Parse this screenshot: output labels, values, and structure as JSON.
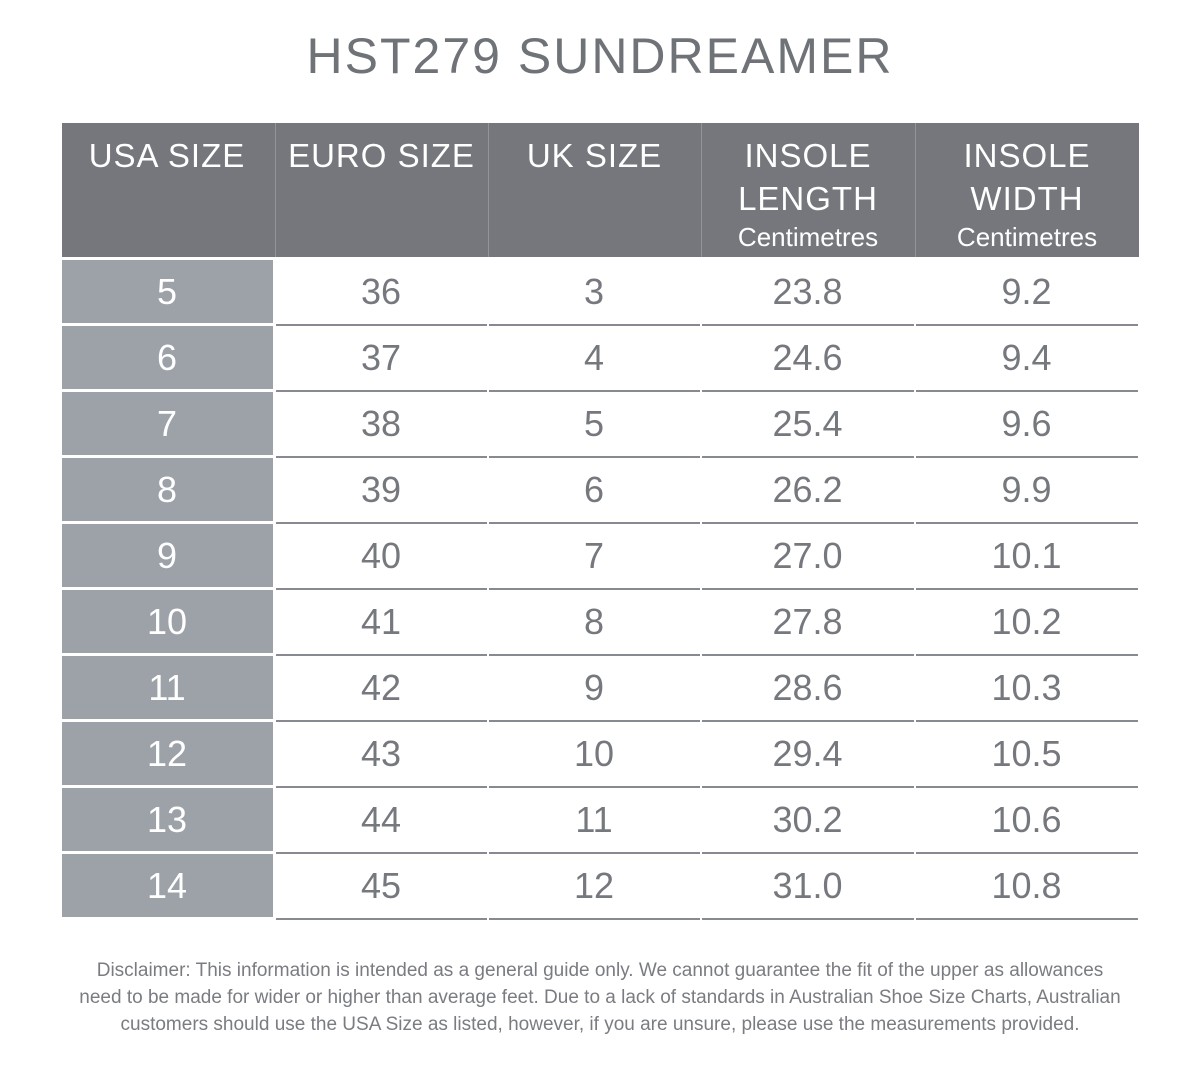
{
  "title": "HST279 SUNDREAMER",
  "header": {
    "cols": [
      {
        "line1": "USA SIZE",
        "line2": "",
        "unit": ""
      },
      {
        "line1": "EURO SIZE",
        "line2": "",
        "unit": ""
      },
      {
        "line1": "UK SIZE",
        "line2": "",
        "unit": ""
      },
      {
        "line1": "INSOLE",
        "line2": "LENGTH",
        "unit": "Centimetres"
      },
      {
        "line1": "INSOLE",
        "line2": "WIDTH",
        "unit": "Centimetres"
      }
    ]
  },
  "chart_data": {
    "type": "table",
    "title": "HST279 SUNDREAMER",
    "columns": [
      "USA SIZE",
      "EURO SIZE",
      "UK SIZE",
      "INSOLE LENGTH Centimetres",
      "INSOLE WIDTH Centimetres"
    ],
    "rows": [
      [
        "5",
        "36",
        "3",
        "23.8",
        "9.2"
      ],
      [
        "6",
        "37",
        "4",
        "24.6",
        "9.4"
      ],
      [
        "7",
        "38",
        "5",
        "25.4",
        "9.6"
      ],
      [
        "8",
        "39",
        "6",
        "26.2",
        "9.9"
      ],
      [
        "9",
        "40",
        "7",
        "27.0",
        "10.1"
      ],
      [
        "10",
        "41",
        "8",
        "27.8",
        "10.2"
      ],
      [
        "11",
        "42",
        "9",
        "28.6",
        "10.3"
      ],
      [
        "12",
        "43",
        "10",
        "29.4",
        "10.5"
      ],
      [
        "13",
        "44",
        "11",
        "30.2",
        "10.6"
      ],
      [
        "14",
        "45",
        "12",
        "31.0",
        "10.8"
      ]
    ]
  },
  "disclaimer_lines": [
    "Disclaimer: This information is intended as a general guide only. We cannot guarantee the fit of the upper as allowances",
    "need to be made for wider or higher than average feet. Due to a lack of standards in Australian Shoe Size Charts, Australian",
    "customers should use the USA Size as listed, however, if you are unsure, please use the measurements provided."
  ],
  "colors": {
    "header_bg": "#75777C",
    "usa_size_column_bg": "#9DA2A9",
    "row_divider": "#878B91",
    "cell_text": "#75787D",
    "header_text": "#FFFFFF",
    "title_text": "#6F7277",
    "disclaimer_text": "#797C81",
    "page_bg": "#FFFFFF"
  }
}
